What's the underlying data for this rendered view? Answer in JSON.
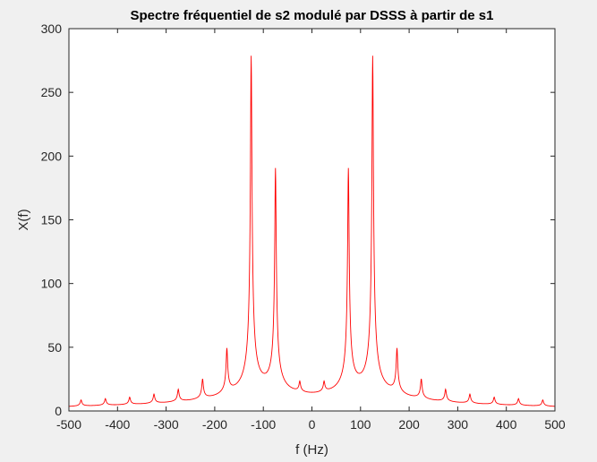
{
  "chart_data": {
    "type": "line",
    "title": "Spectre fréquentiel de s2 modulé par DSSS à partir de s1",
    "xlabel": "f (Hz)",
    "ylabel": "X(f)",
    "xlim": [
      -500,
      500
    ],
    "ylim": [
      0,
      300
    ],
    "xticks": [
      -500,
      -400,
      -300,
      -200,
      -100,
      0,
      100,
      200,
      300,
      400,
      500
    ],
    "yticks": [
      0,
      50,
      100,
      150,
      200,
      250,
      300
    ],
    "grid": false,
    "legend": "none",
    "series": [
      {
        "color": "#ff0000",
        "peaks": [
          {
            "f": -475,
            "amp": 5
          },
          {
            "f": -425,
            "amp": 5.5
          },
          {
            "f": -375,
            "amp": 6
          },
          {
            "f": -325,
            "amp": 7.5
          },
          {
            "f": -275,
            "amp": 10
          },
          {
            "f": -225,
            "amp": 16
          },
          {
            "f": -175,
            "amp": 36
          },
          {
            "f": -125,
            "amp": 269
          },
          {
            "f": -75,
            "amp": 178
          },
          {
            "f": -25,
            "amp": 8.5
          },
          {
            "f": 25,
            "amp": 8.5
          },
          {
            "f": 75,
            "amp": 178
          },
          {
            "f": 125,
            "amp": 269
          },
          {
            "f": 175,
            "amp": 36
          },
          {
            "f": 225,
            "amp": 16
          },
          {
            "f": 275,
            "amp": 10
          },
          {
            "f": 325,
            "amp": 7.5
          },
          {
            "f": 375,
            "amp": 6
          },
          {
            "f": 425,
            "amp": 5.5
          },
          {
            "f": 475,
            "amp": 5
          }
        ]
      }
    ]
  }
}
